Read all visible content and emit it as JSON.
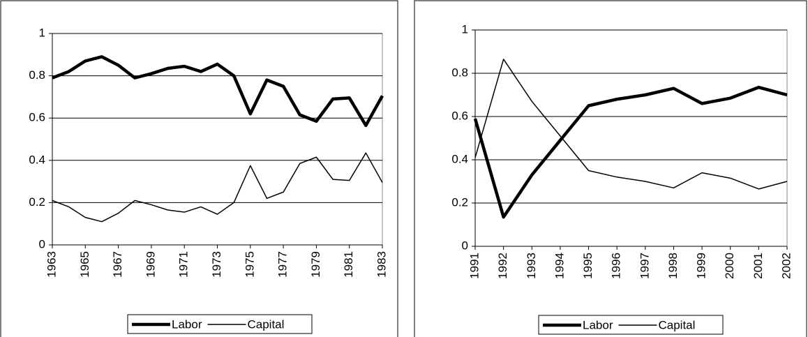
{
  "chart_data": [
    {
      "type": "line",
      "x": [
        1963,
        1964,
        1965,
        1966,
        1967,
        1968,
        1969,
        1970,
        1971,
        1972,
        1973,
        1974,
        1975,
        1976,
        1977,
        1978,
        1979,
        1980,
        1981,
        1982,
        1983
      ],
      "series": [
        {
          "name": "Labor",
          "color": "#000000",
          "values": [
            0.79,
            0.82,
            0.87,
            0.89,
            0.85,
            0.79,
            0.81,
            0.835,
            0.845,
            0.82,
            0.855,
            0.8,
            0.62,
            0.78,
            0.75,
            0.615,
            0.585,
            0.69,
            0.695,
            0.565,
            0.705
          ]
        },
        {
          "name": "Capital",
          "color": "#000000",
          "values": [
            0.21,
            0.18,
            0.13,
            0.11,
            0.15,
            0.21,
            0.19,
            0.165,
            0.155,
            0.18,
            0.145,
            0.2,
            0.375,
            0.22,
            0.25,
            0.385,
            0.415,
            0.31,
            0.305,
            0.435,
            0.295
          ]
        }
      ],
      "xlim": [
        1963,
        1983
      ],
      "xticks": [
        1963,
        1965,
        1967,
        1969,
        1971,
        1973,
        1975,
        1977,
        1979,
        1981,
        1983
      ],
      "ylim": [
        0,
        1
      ],
      "yticks": [
        0,
        0.2,
        0.4,
        0.6,
        0.8,
        1
      ],
      "grid": true,
      "legend": "bottom"
    },
    {
      "type": "line",
      "x": [
        1991,
        1992,
        1993,
        1994,
        1995,
        1996,
        1997,
        1998,
        1999,
        2000,
        2001,
        2002
      ],
      "series": [
        {
          "name": "Labor",
          "color": "#000000",
          "values": [
            0.59,
            0.135,
            0.33,
            0.49,
            0.65,
            0.68,
            0.7,
            0.73,
            0.66,
            0.685,
            0.735,
            0.7
          ]
        },
        {
          "name": "Capital",
          "color": "#000000",
          "values": [
            0.41,
            0.865,
            0.67,
            0.51,
            0.35,
            0.32,
            0.3,
            0.27,
            0.34,
            0.315,
            0.265,
            0.3
          ]
        }
      ],
      "xlim": [
        1991,
        2002
      ],
      "xticks": [
        1991,
        1992,
        1993,
        1994,
        1995,
        1996,
        1997,
        1998,
        1999,
        2000,
        2001,
        2002
      ],
      "ylim": [
        0,
        1
      ],
      "yticks": [
        0,
        0.2,
        0.4,
        0.6,
        0.8,
        1
      ],
      "grid": true,
      "legend": "bottom"
    }
  ]
}
